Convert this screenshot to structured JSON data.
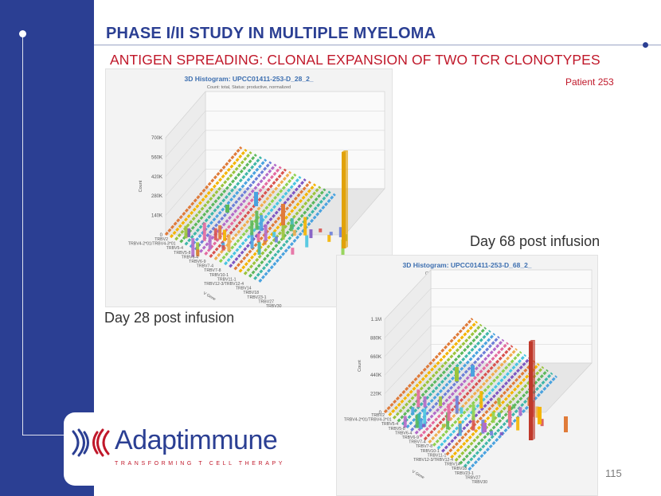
{
  "slide": {
    "title": "PHASE I/II STUDY IN MULTIPLE MYELOMA",
    "subtitle": "ANTIGEN SPREADING: CLONAL EXPANSION OF TWO TCR CLONOTYPES",
    "patient": "Patient 253",
    "page_number": "115"
  },
  "labels": {
    "day68": "Day 68 post infusion",
    "day28": "Day 28 post infusion"
  },
  "charts": [
    {
      "title": "3D Histogram: UPCC01411-253-D_28_2_",
      "subtitle": "Count: total, Status: productive, normalized",
      "ylabel": "Count",
      "xlabel": "V Gene",
      "yticks": [
        "700K",
        "560K",
        "420K",
        "280K",
        "140K",
        "0"
      ],
      "xticks": [
        "TRBV2",
        "TRBV4-2*01/TRBV4-3*01",
        "TRBV5-4",
        "TRBV5-8",
        "TRBV6-4",
        "TRBV6-9",
        "TRBV7-4",
        "TRBV7-8",
        "TRBV10-1",
        "TRBV11-1",
        "TRBV12-3/TRBV12-4",
        "TRBV14",
        "TRBV18",
        "TRBV23-1",
        "TRBV27",
        "TRBV30"
      ]
    },
    {
      "title": "3D Histogram: UPCC01411-253-D_68_2_",
      "subtitle": "Count: total, Status: productive, normalized",
      "ylabel": "Count",
      "xlabel": "V Gene",
      "yticks": [
        "1.1M",
        "880K",
        "660K",
        "440K",
        "220K",
        "0"
      ],
      "xticks": [
        "TRBV2",
        "TRBV4-2*01/TRBV4-3*01",
        "TRBV5-4",
        "TRBV5-8",
        "TRBV6-4",
        "TRBV6-9",
        "TRBV7-4",
        "TRBV7-8",
        "TRBV10-1",
        "TRBV11-1",
        "TRBV12-3/TRBV12-4",
        "TRBV14",
        "TRBV18",
        "TRBV23-1",
        "TRBV27",
        "TRBV30"
      ]
    }
  ],
  "logo": {
    "name": "Adaptimmune",
    "tagline": "TRANSFORMING T CELL THERAPY"
  },
  "colors": {
    "brand_blue": "#2b3f93",
    "accent_red": "#c0182a",
    "tall_bar_day28": "#e1a20a",
    "tall_bar_day68": "#c0392b"
  }
}
